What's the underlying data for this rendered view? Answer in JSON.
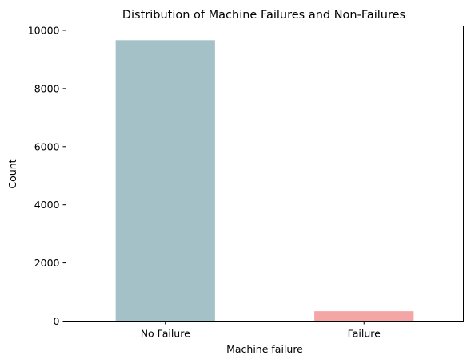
{
  "chart_data": {
    "type": "bar",
    "title": "Distribution of Machine Failures and Non-Failures",
    "xlabel": "Machine failure",
    "ylabel": "Count",
    "categories": [
      "No Failure",
      "Failure"
    ],
    "values": [
      9661,
      339
    ],
    "colors": [
      "#a3c1c6",
      "#f4a5a5"
    ],
    "ylim": [
      0,
      10150
    ],
    "yticks": [
      0,
      2000,
      4000,
      6000,
      8000,
      10000
    ],
    "grid": false,
    "legend": "none"
  }
}
